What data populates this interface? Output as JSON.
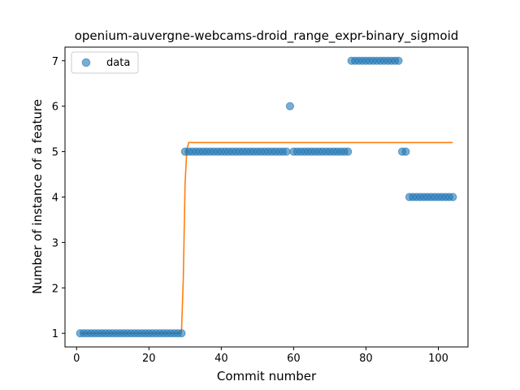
{
  "chart_data": {
    "type": "scatter",
    "title": "openium-auvergne-webcams-droid_range_expr-binary_sigmoid",
    "xlabel": "Commit number",
    "ylabel": "Number of instance of a feature",
    "xlim": [
      -3.2,
      108.2
    ],
    "ylim": [
      0.7,
      7.3
    ],
    "xticks": [
      0,
      20,
      40,
      60,
      80,
      100
    ],
    "yticks": [
      1,
      2,
      3,
      4,
      5,
      6,
      7
    ],
    "grid": false,
    "legend": {
      "position": "top-left"
    },
    "colors": {
      "data": "#1f77b4",
      "fit": "#ff7f0e"
    },
    "series": [
      {
        "name": "data",
        "kind": "scatter",
        "x": [
          1,
          2,
          3,
          4,
          5,
          6,
          7,
          8,
          9,
          10,
          11,
          12,
          13,
          14,
          15,
          16,
          17,
          18,
          19,
          20,
          21,
          22,
          23,
          24,
          25,
          26,
          27,
          28,
          29,
          30,
          31,
          32,
          33,
          34,
          35,
          36,
          37,
          38,
          39,
          40,
          41,
          42,
          43,
          44,
          45,
          46,
          47,
          48,
          49,
          50,
          51,
          52,
          53,
          54,
          55,
          56,
          57,
          58,
          59,
          60,
          61,
          62,
          63,
          64,
          65,
          66,
          67,
          68,
          69,
          70,
          71,
          72,
          73,
          74,
          75,
          76,
          77,
          78,
          79,
          80,
          81,
          82,
          83,
          84,
          85,
          86,
          87,
          88,
          89,
          90,
          91,
          92,
          93,
          94,
          95,
          96,
          97,
          98,
          99,
          100,
          101,
          102,
          103,
          104
        ],
        "y": [
          1,
          1,
          1,
          1,
          1,
          1,
          1,
          1,
          1,
          1,
          1,
          1,
          1,
          1,
          1,
          1,
          1,
          1,
          1,
          1,
          1,
          1,
          1,
          1,
          1,
          1,
          1,
          1,
          1,
          5,
          5,
          5,
          5,
          5,
          5,
          5,
          5,
          5,
          5,
          5,
          5,
          5,
          5,
          5,
          5,
          5,
          5,
          5,
          5,
          5,
          5,
          5,
          5,
          5,
          5,
          5,
          5,
          5,
          6,
          5,
          5,
          5,
          5,
          5,
          5,
          5,
          5,
          5,
          5,
          5,
          5,
          5,
          5,
          5,
          5,
          7,
          7,
          7,
          7,
          7,
          7,
          7,
          7,
          7,
          7,
          7,
          7,
          7,
          7,
          5,
          5,
          4,
          4,
          4,
          4,
          4,
          4,
          4,
          4,
          4,
          4,
          4,
          4,
          4
        ]
      },
      {
        "kind": "line",
        "x": [
          1,
          28.5,
          29,
          29.5,
          30,
          30.5,
          31,
          104
        ],
        "y": [
          1,
          1,
          1.05,
          2.2,
          4.3,
          5.05,
          5.2,
          5.2
        ]
      }
    ]
  }
}
